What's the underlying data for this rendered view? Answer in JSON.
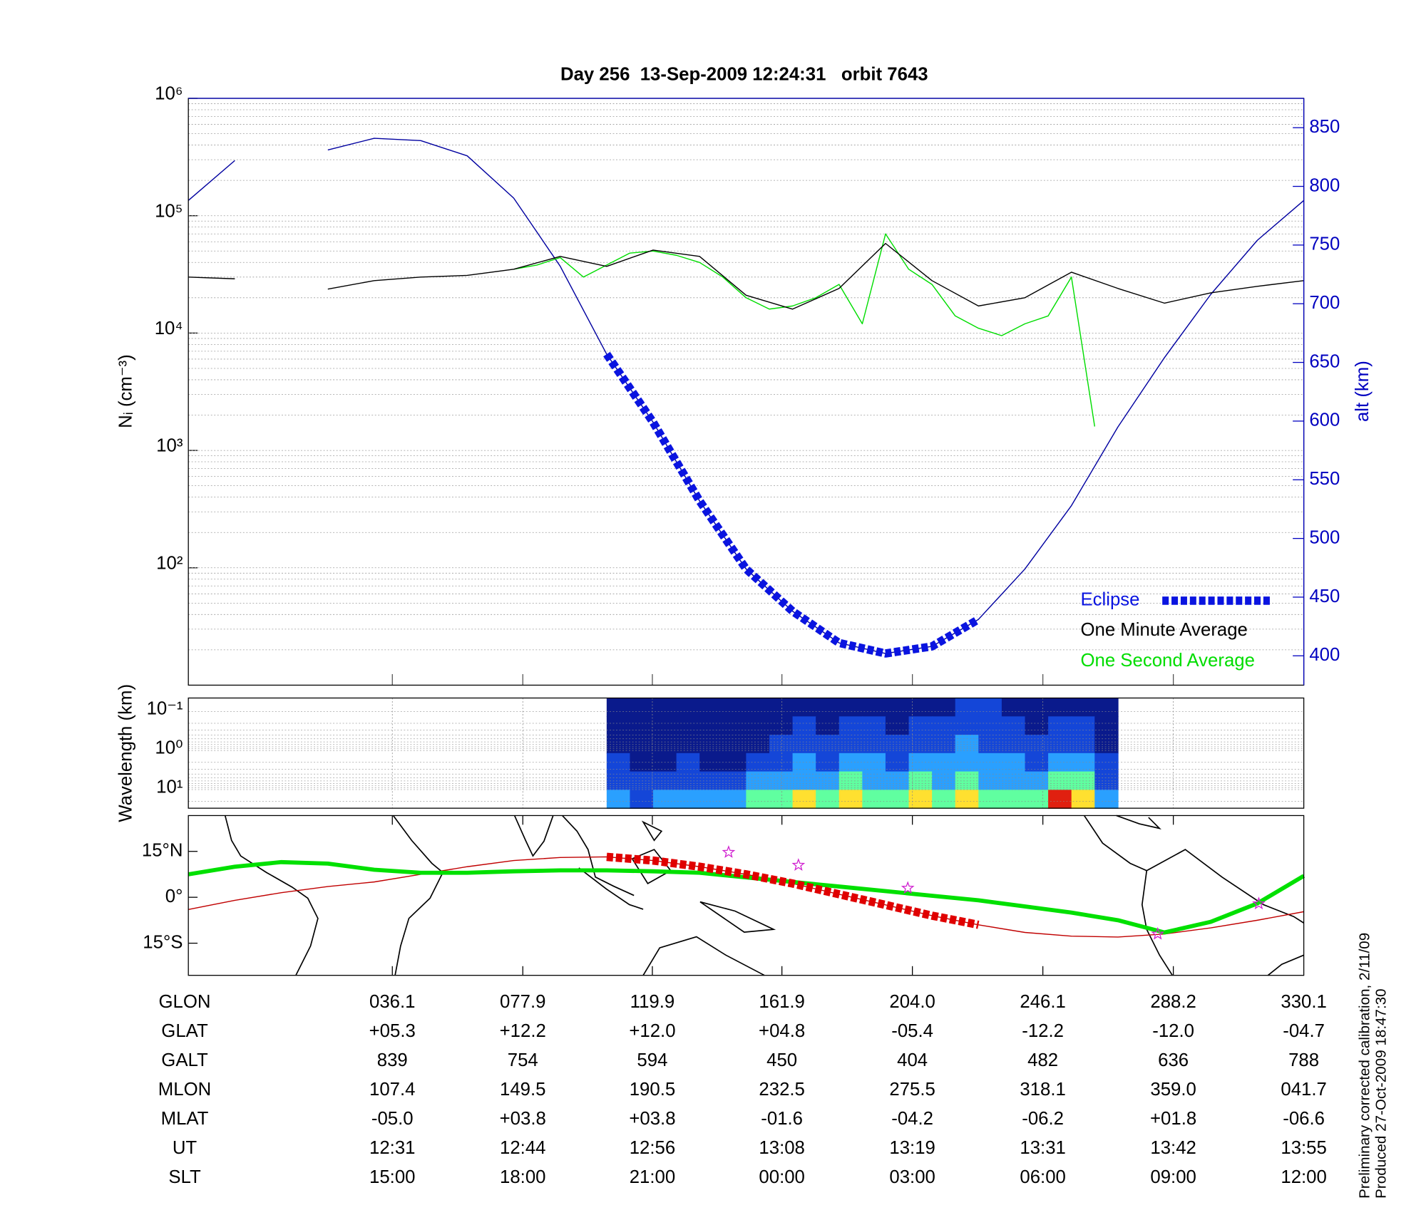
{
  "chart_data": [
    {
      "type": "line",
      "title": "Day 256  13-Sep-2009 12:24:31   orbit 7643",
      "ylabel": "Nᵢ (cm⁻³)",
      "y2label": "alt (km)",
      "log_y": true,
      "ylim": [
        10,
        1000000
      ],
      "yticks": [
        {
          "value": 100,
          "label": "10²"
        },
        {
          "value": 1000,
          "label": "10³"
        },
        {
          "value": 10000,
          "label": "10⁴"
        },
        {
          "value": 100000,
          "label": "10⁵"
        },
        {
          "value": 1000000,
          "label": "10⁶"
        }
      ],
      "y2lim": [
        375,
        875
      ],
      "y2ticks": [
        400,
        450,
        500,
        550,
        600,
        650,
        700,
        750,
        800,
        850
      ],
      "grid": true,
      "legend": "lower right",
      "series": [
        {
          "name": "Eclipse",
          "color": "#0a14e0",
          "axis": "y2",
          "style": "dashed-thick",
          "values": [
            null,
            null,
            null,
            null,
            null,
            null,
            null,
            null,
            null,
            657,
            599,
            532,
            474,
            438,
            411,
            402,
            408,
            431,
            null,
            null,
            null,
            null,
            null,
            null,
            null
          ]
        },
        {
          "name": "One Minute Average",
          "color": "#000000",
          "style": "thin",
          "values": [
            30000,
            29000,
            null,
            23700,
            28000,
            30000,
            31000,
            35000,
            45000,
            37000,
            51000,
            45000,
            21000,
            16000,
            24000,
            58000,
            28000,
            17000,
            20000,
            33000,
            24000,
            18000,
            22000,
            25000,
            28000
          ]
        },
        {
          "name": "One Second Average",
          "color": "#00dd00",
          "style": "thin",
          "values": [
            null,
            null,
            null,
            null,
            null,
            null,
            null,
            null,
            null,
            null,
            null,
            null,
            null,
            null,
            35000,
            38000,
            44000,
            30000,
            38000,
            48000,
            50000,
            46000,
            40000,
            30000,
            20000,
            16000,
            17000,
            20000,
            26000,
            12000,
            70000,
            35000,
            26000,
            14000,
            11000,
            9500,
            12000,
            14000,
            30000,
            1600,
            null,
            null,
            null,
            null,
            null,
            null,
            null,
            null,
            null
          ]
        },
        {
          "color": "#0000a0",
          "axis": "y2",
          "style": "thin",
          "values": [
            788,
            822,
            null,
            831,
            841,
            839,
            826,
            790,
            732,
            657,
            599,
            532,
            474,
            438,
            411,
            402,
            408,
            431,
            474,
            528,
            595,
            654,
            708,
            754,
            788
          ]
        }
      ]
    },
    {
      "type": "heatmap",
      "ylabel": "Wavelength (km)",
      "log_y": true,
      "y_inverted": true,
      "ylim": [
        0.045,
        30
      ],
      "yticks": [
        {
          "value": 0.1,
          "label": "10⁻¹"
        },
        {
          "value": 1,
          "label": "10⁰"
        },
        {
          "value": 10,
          "label": "10¹"
        }
      ],
      "colors": [
        "#0a1a8c",
        "#1446d8",
        "#2aa0ff",
        "#60ffa0",
        "#ffe030",
        "#e02010"
      ],
      "values": [
        [
          null,
          null,
          null,
          null,
          null,
          null,
          null,
          null,
          null,
          null,
          null,
          null,
          null,
          null,
          null,
          null,
          null,
          null,
          0,
          0,
          0,
          0,
          0,
          0,
          0,
          0,
          0,
          0,
          0,
          0,
          0,
          0,
          0,
          1,
          1,
          0,
          0,
          0,
          0,
          0,
          null,
          null,
          null,
          null,
          null,
          null,
          null,
          null
        ],
        [
          null,
          null,
          null,
          null,
          null,
          null,
          null,
          null,
          null,
          null,
          null,
          null,
          null,
          null,
          null,
          null,
          null,
          null,
          0,
          0,
          0,
          0,
          0,
          0,
          0,
          0,
          1,
          0,
          1,
          1,
          0,
          1,
          1,
          1,
          1,
          1,
          0,
          1,
          1,
          0,
          null,
          null,
          null,
          null,
          null,
          null,
          null,
          null
        ],
        [
          null,
          null,
          null,
          null,
          null,
          null,
          null,
          null,
          null,
          null,
          null,
          null,
          null,
          null,
          null,
          null,
          null,
          null,
          0,
          0,
          0,
          0,
          0,
          0,
          0,
          1,
          1,
          1,
          1,
          1,
          1,
          1,
          1,
          2,
          1,
          1,
          1,
          1,
          1,
          0,
          null,
          null,
          null,
          null,
          null,
          null,
          null,
          null
        ],
        [
          null,
          null,
          null,
          null,
          null,
          null,
          null,
          null,
          null,
          null,
          null,
          null,
          null,
          null,
          null,
          null,
          null,
          null,
          1,
          0,
          0,
          1,
          0,
          0,
          1,
          1,
          2,
          1,
          2,
          2,
          1,
          2,
          2,
          2,
          2,
          2,
          1,
          2,
          2,
          1,
          null,
          null,
          null,
          null,
          null,
          null,
          null,
          null
        ],
        [
          null,
          null,
          null,
          null,
          null,
          null,
          null,
          null,
          null,
          null,
          null,
          null,
          null,
          null,
          null,
          null,
          null,
          null,
          1,
          1,
          1,
          1,
          1,
          1,
          2,
          2,
          2,
          2,
          3,
          2,
          2,
          3,
          2,
          3,
          2,
          2,
          2,
          3,
          3,
          1,
          null,
          null,
          null,
          null,
          null,
          null,
          null,
          null
        ],
        [
          null,
          null,
          null,
          null,
          null,
          null,
          null,
          null,
          null,
          null,
          null,
          null,
          null,
          null,
          null,
          null,
          null,
          null,
          2,
          1,
          2,
          2,
          2,
          2,
          3,
          3,
          4,
          3,
          4,
          3,
          3,
          4,
          3,
          4,
          3,
          3,
          3,
          5,
          4,
          2,
          null,
          null,
          null,
          null,
          null,
          null,
          null,
          null
        ]
      ]
    },
    {
      "type": "map",
      "ylim": [
        -25.5,
        26.7
      ],
      "yticks": [
        {
          "value": 15,
          "label": "15°N"
        },
        {
          "value": 0,
          "label": "0°"
        },
        {
          "value": -15,
          "label": "15°S"
        }
      ],
      "series": [
        {
          "color": "#c00000",
          "style": "thin",
          "values": [
            -4,
            -1,
            1.5,
            3.5,
            5,
            7.5,
            10,
            12,
            13,
            13.2,
            12,
            10,
            7.5,
            4.5,
            1,
            -2.5,
            -6,
            -9,
            -11.5,
            -12.7,
            -13,
            -12,
            -10,
            -7.5,
            -4.7
          ]
        },
        {
          "color": "#00e000",
          "style": "thick",
          "values": [
            7.5,
            10,
            11.5,
            11,
            9,
            8,
            8,
            8.5,
            8.8,
            8.8,
            8.5,
            8,
            6.5,
            5,
            3.5,
            2,
            0.5,
            -1,
            -3,
            -5,
            -7.5,
            -11.5,
            -8,
            -2,
            7
          ]
        },
        {
          "color": "#e00000",
          "style": "dashed-thick",
          "values": [
            null,
            null,
            null,
            null,
            null,
            null,
            null,
            null,
            null,
            13.2,
            12,
            10,
            7.5,
            4.5,
            1,
            -2.5,
            -6,
            -9,
            null,
            null,
            null,
            null,
            null,
            null,
            null
          ]
        }
      ]
    }
  ],
  "table": {
    "rows": [
      {
        "label": "GLON",
        "values": [
          "036.1",
          "077.9",
          "119.9",
          "161.9",
          "204.0",
          "246.1",
          "288.2",
          "330.1"
        ]
      },
      {
        "label": "GLAT",
        "values": [
          "+05.3",
          "+12.2",
          "+12.0",
          "+04.8",
          "-05.4",
          "-12.2",
          "-12.0",
          "-04.7"
        ]
      },
      {
        "label": "GALT",
        "values": [
          "839",
          "754",
          "594",
          "450",
          "404",
          "482",
          "636",
          "788"
        ]
      },
      {
        "label": "MLON",
        "values": [
          "107.4",
          "149.5",
          "190.5",
          "232.5",
          "275.5",
          "318.1",
          "359.0",
          "041.7"
        ]
      },
      {
        "label": "MLAT",
        "values": [
          "-05.0",
          "+03.8",
          "+03.8",
          "-01.6",
          "-04.2",
          "-06.2",
          "+01.8",
          "-06.6"
        ]
      },
      {
        "label": "UT",
        "values": [
          "12:31",
          "12:44",
          "12:56",
          "13:08",
          "13:19",
          "13:31",
          "13:42",
          "13:55"
        ]
      },
      {
        "label": "SLT",
        "values": [
          "15:00",
          "18:00",
          "21:00",
          "00:00",
          "03:00",
          "06:00",
          "09:00",
          "12:00"
        ]
      }
    ]
  },
  "footer": [
    "Preliminary corrected calibration, 2/11/09",
    "Produced 27-Oct-2009 18:47:30"
  ]
}
